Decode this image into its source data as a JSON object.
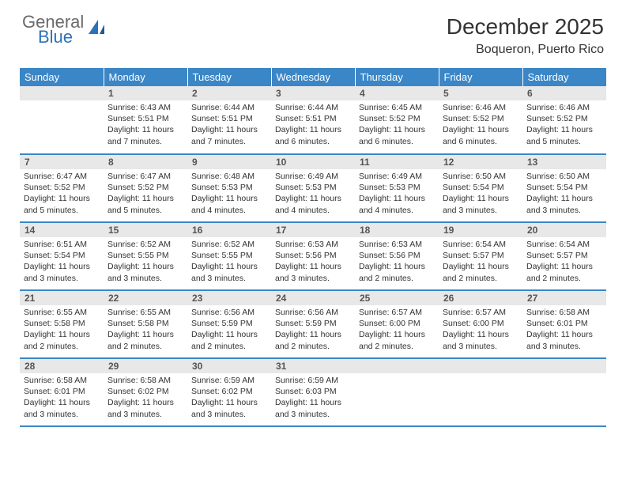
{
  "logo": {
    "general": "General",
    "blue": "Blue"
  },
  "title": "December 2025",
  "location": "Boqueron, Puerto Rico",
  "colors": {
    "header_bg": "#3b86c6",
    "header_text": "#ffffff",
    "daynum_bg": "#e8e8e8",
    "daynum_text": "#555555",
    "border": "#3b86c6",
    "body_text": "#333333",
    "logo_gray": "#6a6a6a",
    "logo_blue": "#2b72b8"
  },
  "day_headers": [
    "Sunday",
    "Monday",
    "Tuesday",
    "Wednesday",
    "Thursday",
    "Friday",
    "Saturday"
  ],
  "weeks": [
    [
      null,
      {
        "n": "1",
        "sr": "Sunrise: 6:43 AM",
        "ss": "Sunset: 5:51 PM",
        "dl": "Daylight: 11 hours and 7 minutes."
      },
      {
        "n": "2",
        "sr": "Sunrise: 6:44 AM",
        "ss": "Sunset: 5:51 PM",
        "dl": "Daylight: 11 hours and 7 minutes."
      },
      {
        "n": "3",
        "sr": "Sunrise: 6:44 AM",
        "ss": "Sunset: 5:51 PM",
        "dl": "Daylight: 11 hours and 6 minutes."
      },
      {
        "n": "4",
        "sr": "Sunrise: 6:45 AM",
        "ss": "Sunset: 5:52 PM",
        "dl": "Daylight: 11 hours and 6 minutes."
      },
      {
        "n": "5",
        "sr": "Sunrise: 6:46 AM",
        "ss": "Sunset: 5:52 PM",
        "dl": "Daylight: 11 hours and 6 minutes."
      },
      {
        "n": "6",
        "sr": "Sunrise: 6:46 AM",
        "ss": "Sunset: 5:52 PM",
        "dl": "Daylight: 11 hours and 5 minutes."
      }
    ],
    [
      {
        "n": "7",
        "sr": "Sunrise: 6:47 AM",
        "ss": "Sunset: 5:52 PM",
        "dl": "Daylight: 11 hours and 5 minutes."
      },
      {
        "n": "8",
        "sr": "Sunrise: 6:47 AM",
        "ss": "Sunset: 5:52 PM",
        "dl": "Daylight: 11 hours and 5 minutes."
      },
      {
        "n": "9",
        "sr": "Sunrise: 6:48 AM",
        "ss": "Sunset: 5:53 PM",
        "dl": "Daylight: 11 hours and 4 minutes."
      },
      {
        "n": "10",
        "sr": "Sunrise: 6:49 AM",
        "ss": "Sunset: 5:53 PM",
        "dl": "Daylight: 11 hours and 4 minutes."
      },
      {
        "n": "11",
        "sr": "Sunrise: 6:49 AM",
        "ss": "Sunset: 5:53 PM",
        "dl": "Daylight: 11 hours and 4 minutes."
      },
      {
        "n": "12",
        "sr": "Sunrise: 6:50 AM",
        "ss": "Sunset: 5:54 PM",
        "dl": "Daylight: 11 hours and 3 minutes."
      },
      {
        "n": "13",
        "sr": "Sunrise: 6:50 AM",
        "ss": "Sunset: 5:54 PM",
        "dl": "Daylight: 11 hours and 3 minutes."
      }
    ],
    [
      {
        "n": "14",
        "sr": "Sunrise: 6:51 AM",
        "ss": "Sunset: 5:54 PM",
        "dl": "Daylight: 11 hours and 3 minutes."
      },
      {
        "n": "15",
        "sr": "Sunrise: 6:52 AM",
        "ss": "Sunset: 5:55 PM",
        "dl": "Daylight: 11 hours and 3 minutes."
      },
      {
        "n": "16",
        "sr": "Sunrise: 6:52 AM",
        "ss": "Sunset: 5:55 PM",
        "dl": "Daylight: 11 hours and 3 minutes."
      },
      {
        "n": "17",
        "sr": "Sunrise: 6:53 AM",
        "ss": "Sunset: 5:56 PM",
        "dl": "Daylight: 11 hours and 3 minutes."
      },
      {
        "n": "18",
        "sr": "Sunrise: 6:53 AM",
        "ss": "Sunset: 5:56 PM",
        "dl": "Daylight: 11 hours and 2 minutes."
      },
      {
        "n": "19",
        "sr": "Sunrise: 6:54 AM",
        "ss": "Sunset: 5:57 PM",
        "dl": "Daylight: 11 hours and 2 minutes."
      },
      {
        "n": "20",
        "sr": "Sunrise: 6:54 AM",
        "ss": "Sunset: 5:57 PM",
        "dl": "Daylight: 11 hours and 2 minutes."
      }
    ],
    [
      {
        "n": "21",
        "sr": "Sunrise: 6:55 AM",
        "ss": "Sunset: 5:58 PM",
        "dl": "Daylight: 11 hours and 2 minutes."
      },
      {
        "n": "22",
        "sr": "Sunrise: 6:55 AM",
        "ss": "Sunset: 5:58 PM",
        "dl": "Daylight: 11 hours and 2 minutes."
      },
      {
        "n": "23",
        "sr": "Sunrise: 6:56 AM",
        "ss": "Sunset: 5:59 PM",
        "dl": "Daylight: 11 hours and 2 minutes."
      },
      {
        "n": "24",
        "sr": "Sunrise: 6:56 AM",
        "ss": "Sunset: 5:59 PM",
        "dl": "Daylight: 11 hours and 2 minutes."
      },
      {
        "n": "25",
        "sr": "Sunrise: 6:57 AM",
        "ss": "Sunset: 6:00 PM",
        "dl": "Daylight: 11 hours and 2 minutes."
      },
      {
        "n": "26",
        "sr": "Sunrise: 6:57 AM",
        "ss": "Sunset: 6:00 PM",
        "dl": "Daylight: 11 hours and 3 minutes."
      },
      {
        "n": "27",
        "sr": "Sunrise: 6:58 AM",
        "ss": "Sunset: 6:01 PM",
        "dl": "Daylight: 11 hours and 3 minutes."
      }
    ],
    [
      {
        "n": "28",
        "sr": "Sunrise: 6:58 AM",
        "ss": "Sunset: 6:01 PM",
        "dl": "Daylight: 11 hours and 3 minutes."
      },
      {
        "n": "29",
        "sr": "Sunrise: 6:58 AM",
        "ss": "Sunset: 6:02 PM",
        "dl": "Daylight: 11 hours and 3 minutes."
      },
      {
        "n": "30",
        "sr": "Sunrise: 6:59 AM",
        "ss": "Sunset: 6:02 PM",
        "dl": "Daylight: 11 hours and 3 minutes."
      },
      {
        "n": "31",
        "sr": "Sunrise: 6:59 AM",
        "ss": "Sunset: 6:03 PM",
        "dl": "Daylight: 11 hours and 3 minutes."
      },
      null,
      null,
      null
    ]
  ]
}
